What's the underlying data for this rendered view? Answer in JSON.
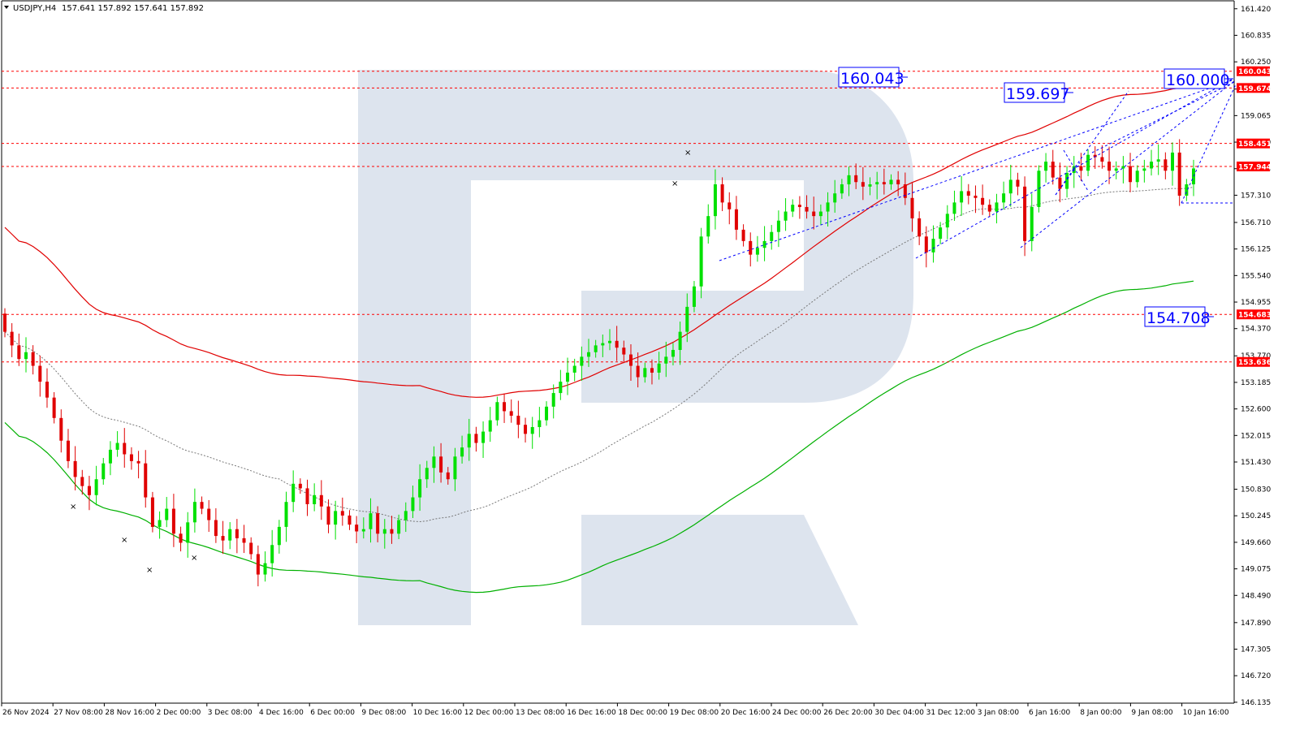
{
  "header": {
    "symbol": "USDJPY,H4",
    "ohlc": "157.641 157.892 157.641 157.892"
  },
  "colors": {
    "bull": "#00e000",
    "bear": "#e00000",
    "upper_ma": "#e00000",
    "lower_ma": "#00b000",
    "mid_ma": "#777777",
    "level_line": "#ff0000",
    "forecast": "#0000ff",
    "watermark": "#dde4ee"
  },
  "chart_data": {
    "type": "candlestick",
    "instrument": "USDJPY",
    "timeframe": "H4",
    "ylim": [
      146.115,
      161.595
    ],
    "y_ticks": [
      "161.420",
      "160.835",
      "160.250",
      "159.650",
      "159.065",
      "158.480",
      "157.895",
      "157.310",
      "156.710",
      "156.125",
      "155.540",
      "154.955",
      "154.370",
      "153.770",
      "153.185",
      "152.600",
      "152.015",
      "151.430",
      "150.830",
      "150.245",
      "149.660",
      "149.075",
      "148.490",
      "147.890",
      "147.305",
      "146.720",
      "146.135"
    ],
    "x_ticks": [
      "26 Nov 2024",
      "27 Nov 08:00",
      "28 Nov 16:00",
      "2 Dec 00:00",
      "3 Dec 08:00",
      "4 Dec 16:00",
      "6 Dec 00:00",
      "9 Dec 08:00",
      "10 Dec 16:00",
      "12 Dec 00:00",
      "13 Dec 08:00",
      "16 Dec 16:00",
      "18 Dec 00:00",
      "19 Dec 08:00",
      "20 Dec 16:00",
      "24 Dec 00:00",
      "26 Dec 20:00",
      "30 Dec 04:00",
      "31 Dec 12:00",
      "3 Jan 08:00",
      "6 Jan 16:00",
      "8 Jan 00:00",
      "9 Jan 08:00",
      "10 Jan 16:00"
    ],
    "closes": [
      154.3,
      154.0,
      153.7,
      153.85,
      153.55,
      153.2,
      152.85,
      152.4,
      151.9,
      151.45,
      151.1,
      150.9,
      150.7,
      151.05,
      151.4,
      151.7,
      151.85,
      151.6,
      151.45,
      151.4,
      150.65,
      150.0,
      150.15,
      150.4,
      149.85,
      149.65,
      150.1,
      150.55,
      150.4,
      150.15,
      149.8,
      149.7,
      149.95,
      149.75,
      149.65,
      149.4,
      148.95,
      149.2,
      149.6,
      150.0,
      150.55,
      150.95,
      150.85,
      150.5,
      150.7,
      150.45,
      150.05,
      150.35,
      150.25,
      150.05,
      149.9,
      149.95,
      150.3,
      149.85,
      149.95,
      149.85,
      150.15,
      150.35,
      150.65,
      151.05,
      151.3,
      151.55,
      151.2,
      151.05,
      151.55,
      151.75,
      152.05,
      151.85,
      152.1,
      152.35,
      152.75,
      152.55,
      152.45,
      152.25,
      152.05,
      152.2,
      152.35,
      152.65,
      152.95,
      153.2,
      153.4,
      153.55,
      153.75,
      153.85,
      154.0,
      154.05,
      154.1,
      153.95,
      153.8,
      153.55,
      153.3,
      153.5,
      153.4,
      153.6,
      153.75,
      153.9,
      154.3,
      154.85,
      155.3,
      156.4,
      156.85,
      157.55,
      157.15,
      157.0,
      156.55,
      156.3,
      156.0,
      156.15,
      156.3,
      156.5,
      156.75,
      156.95,
      157.1,
      157.05,
      156.95,
      156.85,
      156.95,
      157.15,
      157.35,
      157.55,
      157.75,
      157.6,
      157.5,
      157.55,
      157.6,
      157.55,
      157.65,
      157.55,
      157.25,
      156.8,
      156.4,
      156.05,
      156.35,
      156.6,
      156.9,
      157.15,
      157.4,
      157.3,
      157.25,
      157.1,
      156.95,
      157.15,
      157.35,
      157.65,
      157.5,
      156.3,
      157.05,
      157.85,
      158.05,
      157.7,
      157.45,
      157.8,
      157.95,
      157.85,
      158.2,
      158.15,
      158.05,
      157.85,
      157.9,
      157.95,
      157.6,
      157.85,
      157.9,
      158.05,
      158.1,
      157.85,
      158.25,
      157.3,
      157.55,
      157.9
    ]
  },
  "levels": [
    {
      "id": "r1",
      "label": "160.043",
      "value": 160.043
    },
    {
      "id": "r2",
      "label": "159.674",
      "value": 159.674
    },
    {
      "id": "r3",
      "label": "158.451",
      "value": 158.451
    },
    {
      "id": "r4",
      "label": "157.944",
      "value": 157.944
    },
    {
      "id": "s1",
      "label": "154.683",
      "value": 154.683
    },
    {
      "id": "s2",
      "label": "153.636",
      "value": 153.636
    }
  ],
  "targets": [
    {
      "id": "t1",
      "label": "160.043"
    },
    {
      "id": "t2",
      "label": "159.697"
    },
    {
      "id": "t3",
      "label": "160.000"
    },
    {
      "id": "t4",
      "label": "154.708"
    }
  ]
}
